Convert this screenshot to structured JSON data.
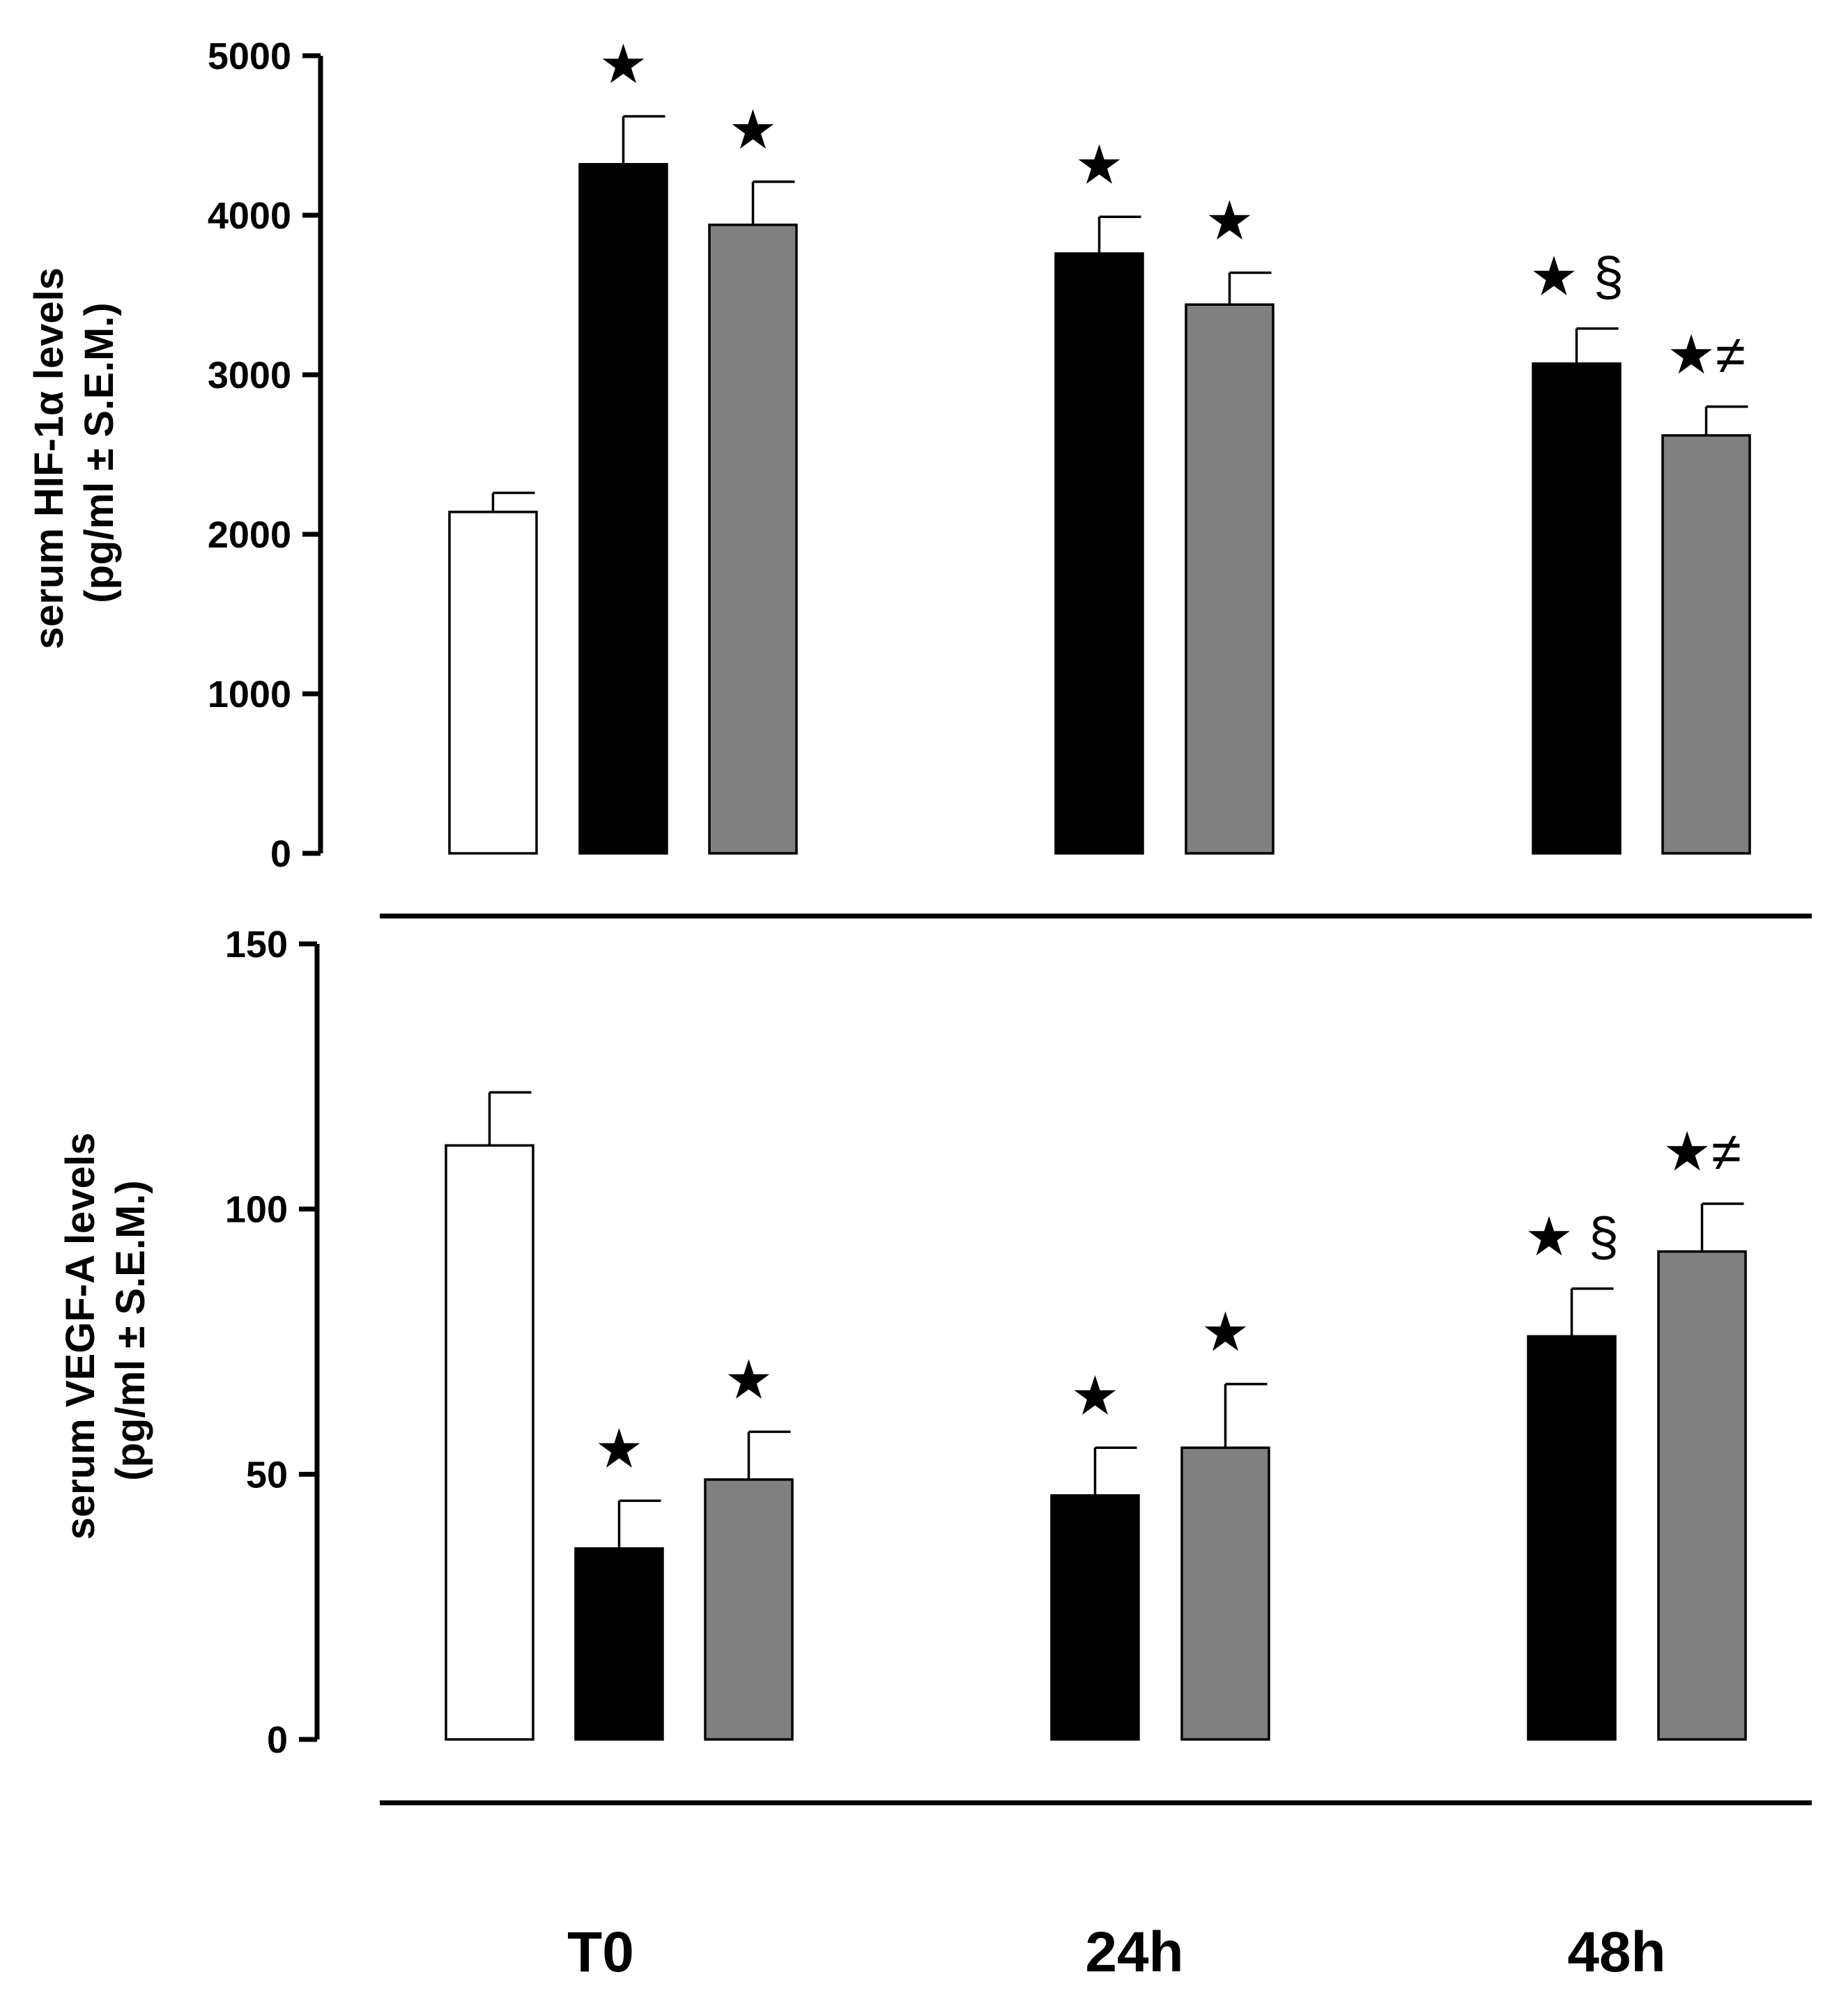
{
  "chart_data": [
    {
      "type": "bar",
      "title": "",
      "ylabel_line1": "serum HIF-1α levels",
      "ylabel_line2": "(pg/ml ± S.E.M.)",
      "xlabel": "",
      "ylim": [
        0,
        5000
      ],
      "yticks": [
        0,
        1000,
        2000,
        3000,
        4000,
        5000
      ],
      "ytick_labels": [
        "0",
        "1000",
        "2000",
        "3000",
        "4000",
        "5000"
      ],
      "grid": false,
      "bars": [
        {
          "group": "T0",
          "color": "#ffffff",
          "value": 2140,
          "error": 120,
          "annotation": ""
        },
        {
          "group": "T0",
          "color": "#000000",
          "value": 4320,
          "error": 300,
          "annotation": "★"
        },
        {
          "group": "T0",
          "color": "#808080",
          "value": 3940,
          "error": 270,
          "annotation": "★"
        },
        {
          "group": "24h",
          "color": "#000000",
          "value": 3760,
          "error": 230,
          "annotation": "★"
        },
        {
          "group": "24h",
          "color": "#808080",
          "value": 3440,
          "error": 200,
          "annotation": "★"
        },
        {
          "group": "48h",
          "color": "#000000",
          "value": 3070,
          "error": 220,
          "annotation": "★ §"
        },
        {
          "group": "48h",
          "color": "#808080",
          "value": 2620,
          "error": 180,
          "annotation": "★≠"
        }
      ]
    },
    {
      "type": "bar",
      "title": "",
      "ylabel_line1": "serum VEGF-A levels",
      "ylabel_line2": "(pg/ml ± S.E.M.)",
      "xlabel": "",
      "ylim": [
        0,
        150
      ],
      "yticks": [
        0,
        50,
        100,
        150
      ],
      "ytick_labels": [
        "0",
        "50",
        "100",
        "150"
      ],
      "grid": false,
      "bars": [
        {
          "group": "T0",
          "color": "#ffffff",
          "value": 112,
          "error": 10,
          "annotation": ""
        },
        {
          "group": "T0",
          "color": "#000000",
          "value": 36,
          "error": 9,
          "annotation": "★"
        },
        {
          "group": "T0",
          "color": "#808080",
          "value": 49,
          "error": 9,
          "annotation": "★"
        },
        {
          "group": "24h",
          "color": "#000000",
          "value": 46,
          "error": 9,
          "annotation": "★"
        },
        {
          "group": "24h",
          "color": "#808080",
          "value": 55,
          "error": 12,
          "annotation": "★"
        },
        {
          "group": "48h",
          "color": "#000000",
          "value": 76,
          "error": 9,
          "annotation": "★ §"
        },
        {
          "group": "48h",
          "color": "#808080",
          "value": 92,
          "error": 9,
          "annotation": "★≠"
        }
      ]
    }
  ],
  "categories": [
    "T0",
    "24h",
    "48h"
  ]
}
